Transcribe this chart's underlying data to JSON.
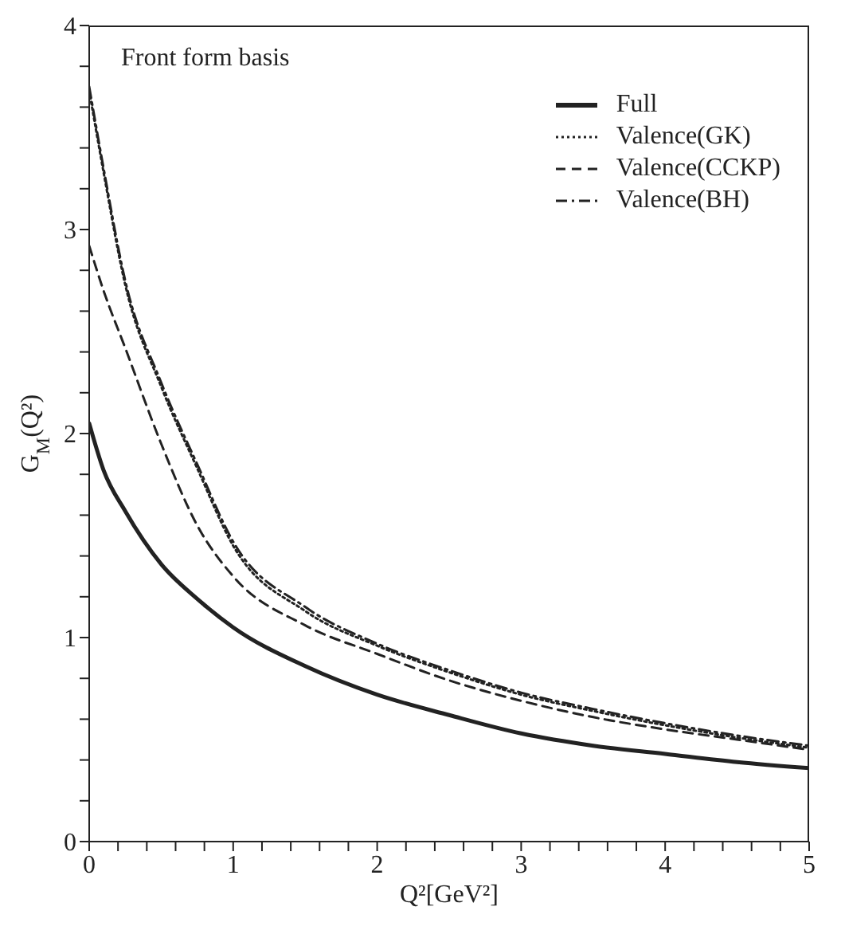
{
  "chart_data": {
    "type": "line",
    "annotations": [
      "Front form basis"
    ],
    "xlabel": "Q²[GeV²]",
    "ylabel": "G$_{M}$(Q²)",
    "x": [
      0,
      0.1,
      0.25,
      0.5,
      0.75,
      1,
      1.5,
      2,
      2.5,
      3,
      3.5,
      4,
      4.5,
      5
    ],
    "series": [
      {
        "name": "Full",
        "color": "#222222",
        "line_style": "solid",
        "values": [
          2.05,
          1.82,
          1.62,
          1.36,
          1.19,
          1.05,
          0.86,
          0.72,
          0.62,
          0.53,
          0.47,
          0.43,
          0.39,
          0.36
        ]
      },
      {
        "name": "Valence(GK)",
        "color": "#222222",
        "line_style": "dotted",
        "values": [
          3.68,
          3.28,
          2.73,
          2.23,
          1.83,
          1.45,
          1.13,
          0.96,
          0.83,
          0.72,
          0.64,
          0.57,
          0.51,
          0.46
        ]
      },
      {
        "name": "Valence(CCKP)",
        "color": "#222222",
        "line_style": "dashed",
        "values": [
          2.92,
          2.7,
          2.42,
          1.95,
          1.55,
          1.3,
          1.06,
          0.92,
          0.79,
          0.69,
          0.61,
          0.55,
          0.5,
          0.45
        ]
      },
      {
        "name": "Valence(BH)",
        "color": "#222222",
        "line_style": "dashdot",
        "values": [
          3.7,
          3.3,
          2.75,
          2.25,
          1.85,
          1.47,
          1.15,
          0.97,
          0.84,
          0.73,
          0.65,
          0.58,
          0.52,
          0.47
        ]
      }
    ],
    "xlim": [
      0,
      5
    ],
    "xticks": [
      0,
      {
        "value": 0.2,
        "label": null
      },
      {
        "value": 0.4,
        "label": null
      },
      {
        "value": 0.6,
        "label": null
      },
      {
        "value": 0.8,
        "label": null
      },
      1,
      {
        "value": 1.2,
        "label": null
      },
      {
        "value": 1.4,
        "label": null
      },
      {
        "value": 1.6,
        "label": null
      },
      {
        "value": 1.8,
        "label": null
      },
      2,
      {
        "value": 2.2,
        "label": null
      },
      {
        "value": 2.4,
        "label": null
      },
      {
        "value": 2.6,
        "label": null
      },
      {
        "value": 2.8,
        "label": null
      },
      3,
      {
        "value": 3.2,
        "label": null
      },
      {
        "value": 3.4,
        "label": null
      },
      {
        "value": 3.6,
        "label": null
      },
      {
        "value": 3.8,
        "label": null
      },
      4,
      {
        "value": 4.2,
        "label": null
      },
      {
        "value": 4.4,
        "label": null
      },
      {
        "value": 4.6,
        "label": null
      },
      {
        "value": 4.8,
        "label": null
      },
      5
    ],
    "ylim": [
      0,
      4
    ],
    "yticks": [
      0,
      {
        "value": 0.2,
        "label": null
      },
      {
        "value": 0.4,
        "label": null
      },
      {
        "value": 0.6,
        "label": null
      },
      {
        "value": 0.8,
        "label": null
      },
      1,
      {
        "value": 1.2,
        "label": null
      },
      {
        "value": 1.4,
        "label": null
      },
      {
        "value": 1.6,
        "label": null
      },
      {
        "value": 1.8,
        "label": null
      },
      2,
      {
        "value": 2.2,
        "label": null
      },
      {
        "value": 2.4,
        "label": null
      },
      {
        "value": 2.6,
        "label": null
      },
      {
        "value": 2.8,
        "label": null
      },
      3,
      {
        "value": 3.2,
        "label": null
      },
      {
        "value": 3.4,
        "label": null
      },
      {
        "value": 3.6,
        "label": null
      },
      {
        "value": 3.8,
        "label": null
      },
      4
    ],
    "grid": false,
    "legend": "top right",
    "marker": "none"
  }
}
